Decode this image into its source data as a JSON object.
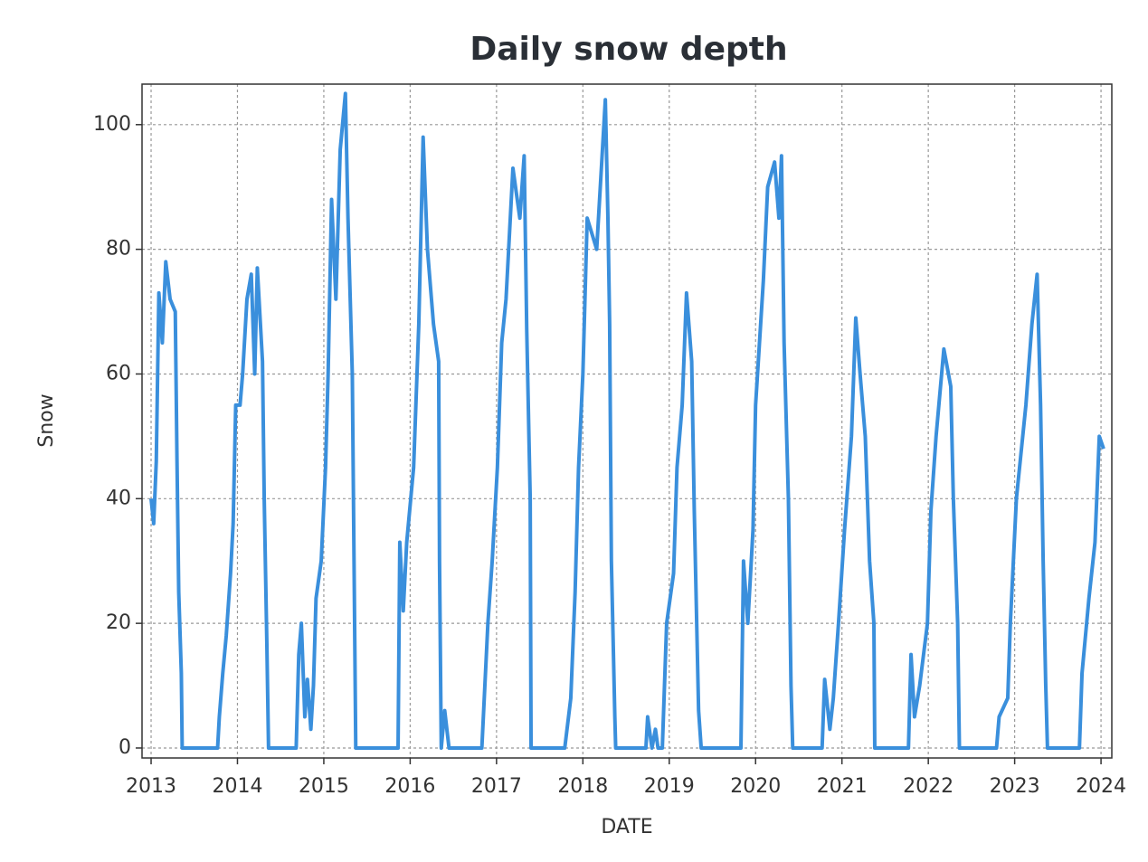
{
  "chart_data": {
    "type": "line",
    "title": "Daily snow depth",
    "x_label": "DATE",
    "y_label": "Snow",
    "grid": true,
    "xlim": [
      2012.895,
      2024.125
    ],
    "ylim": [
      -1.6,
      106.5
    ],
    "xticks": [
      2013,
      2014,
      2015,
      2016,
      2017,
      2018,
      2019,
      2020,
      2021,
      2022,
      2023,
      2024
    ],
    "yticks": [
      0,
      20,
      40,
      60,
      80,
      100
    ],
    "x": [
      2013.0,
      2013.03,
      2013.06,
      2013.09,
      2013.13,
      2013.17,
      2013.22,
      2013.28,
      2013.3,
      2013.32,
      2013.35,
      2013.36,
      2013.77,
      2013.79,
      2013.83,
      2013.87,
      2013.92,
      2013.95,
      2013.98,
      2014.03,
      2014.06,
      2014.11,
      2014.16,
      2014.2,
      2014.23,
      2014.29,
      2014.31,
      2014.34,
      2014.36,
      2014.68,
      2014.71,
      2014.74,
      2014.78,
      2014.81,
      2014.85,
      2014.88,
      2014.91,
      2014.97,
      2015.02,
      2015.05,
      2015.09,
      2015.14,
      2015.19,
      2015.25,
      2015.28,
      2015.33,
      2015.35,
      2015.37,
      2015.86,
      2015.88,
      2015.92,
      2015.96,
      2016.04,
      2016.1,
      2016.15,
      2016.2,
      2016.27,
      2016.33,
      2016.34,
      2016.36,
      2016.4,
      2016.45,
      2016.83,
      2016.9,
      2016.95,
      2017.01,
      2017.06,
      2017.11,
      2017.19,
      2017.27,
      2017.32,
      2017.35,
      2017.39,
      2017.4,
      2017.79,
      2017.86,
      2017.91,
      2017.95,
      2018.0,
      2018.05,
      2018.16,
      2018.21,
      2018.26,
      2018.29,
      2018.31,
      2018.33,
      2018.37,
      2018.38,
      2018.73,
      2018.75,
      2018.8,
      2018.84,
      2018.87,
      2018.92,
      2018.97,
      2019.05,
      2019.09,
      2019.15,
      2019.2,
      2019.26,
      2019.29,
      2019.34,
      2019.37,
      2019.83,
      2019.86,
      2019.91,
      2019.97,
      2020.0,
      2020.09,
      2020.14,
      2020.22,
      2020.27,
      2020.3,
      2020.33,
      2020.38,
      2020.41,
      2020.43,
      2020.77,
      2020.8,
      2020.86,
      2020.9,
      2020.96,
      2021.03,
      2021.11,
      2021.16,
      2021.21,
      2021.27,
      2021.32,
      2021.37,
      2021.38,
      2021.77,
      2021.8,
      2021.84,
      2021.9,
      2021.99,
      2022.03,
      2022.09,
      2022.18,
      2022.26,
      2022.29,
      2022.34,
      2022.36,
      2022.79,
      2022.82,
      2022.92,
      2022.95,
      2023.02,
      2023.13,
      2023.2,
      2023.26,
      2023.3,
      2023.33,
      2023.36,
      2023.38,
      2023.75,
      2023.78,
      2023.86,
      2023.93,
      2023.98,
      2024.03
    ],
    "series": [
      {
        "color": "#3a8fdc",
        "values": [
          40,
          36,
          46,
          73,
          65,
          78,
          72,
          70,
          46,
          25,
          12,
          0,
          0,
          5,
          12,
          18,
          28,
          36,
          55,
          55,
          60,
          72,
          76,
          60,
          77,
          62,
          40,
          17,
          0,
          0,
          15,
          20,
          5,
          11,
          3,
          10,
          24,
          30,
          45,
          60,
          88,
          72,
          96,
          105,
          85,
          60,
          30,
          0,
          0,
          33,
          22,
          33,
          45,
          68,
          98,
          80,
          68,
          62,
          30,
          0,
          6,
          0,
          0,
          20,
          30,
          45,
          65,
          72,
          93,
          85,
          95,
          67,
          40,
          0,
          0,
          8,
          25,
          45,
          60,
          85,
          80,
          92,
          104,
          85,
          68,
          30,
          5,
          0,
          0,
          5,
          0,
          3,
          0,
          0,
          20,
          28,
          45,
          55,
          73,
          62,
          38,
          6,
          0,
          0,
          30,
          20,
          35,
          55,
          75,
          90,
          94,
          85,
          95,
          65,
          40,
          10,
          0,
          0,
          11,
          3,
          8,
          20,
          35,
          50,
          69,
          60,
          50,
          30,
          20,
          0,
          0,
          15,
          5,
          10,
          20,
          38,
          50,
          64,
          58,
          40,
          20,
          0,
          0,
          5,
          8,
          20,
          40,
          55,
          68,
          76,
          55,
          30,
          10,
          0,
          0,
          12,
          24,
          33,
          50,
          48
        ]
      }
    ]
  }
}
